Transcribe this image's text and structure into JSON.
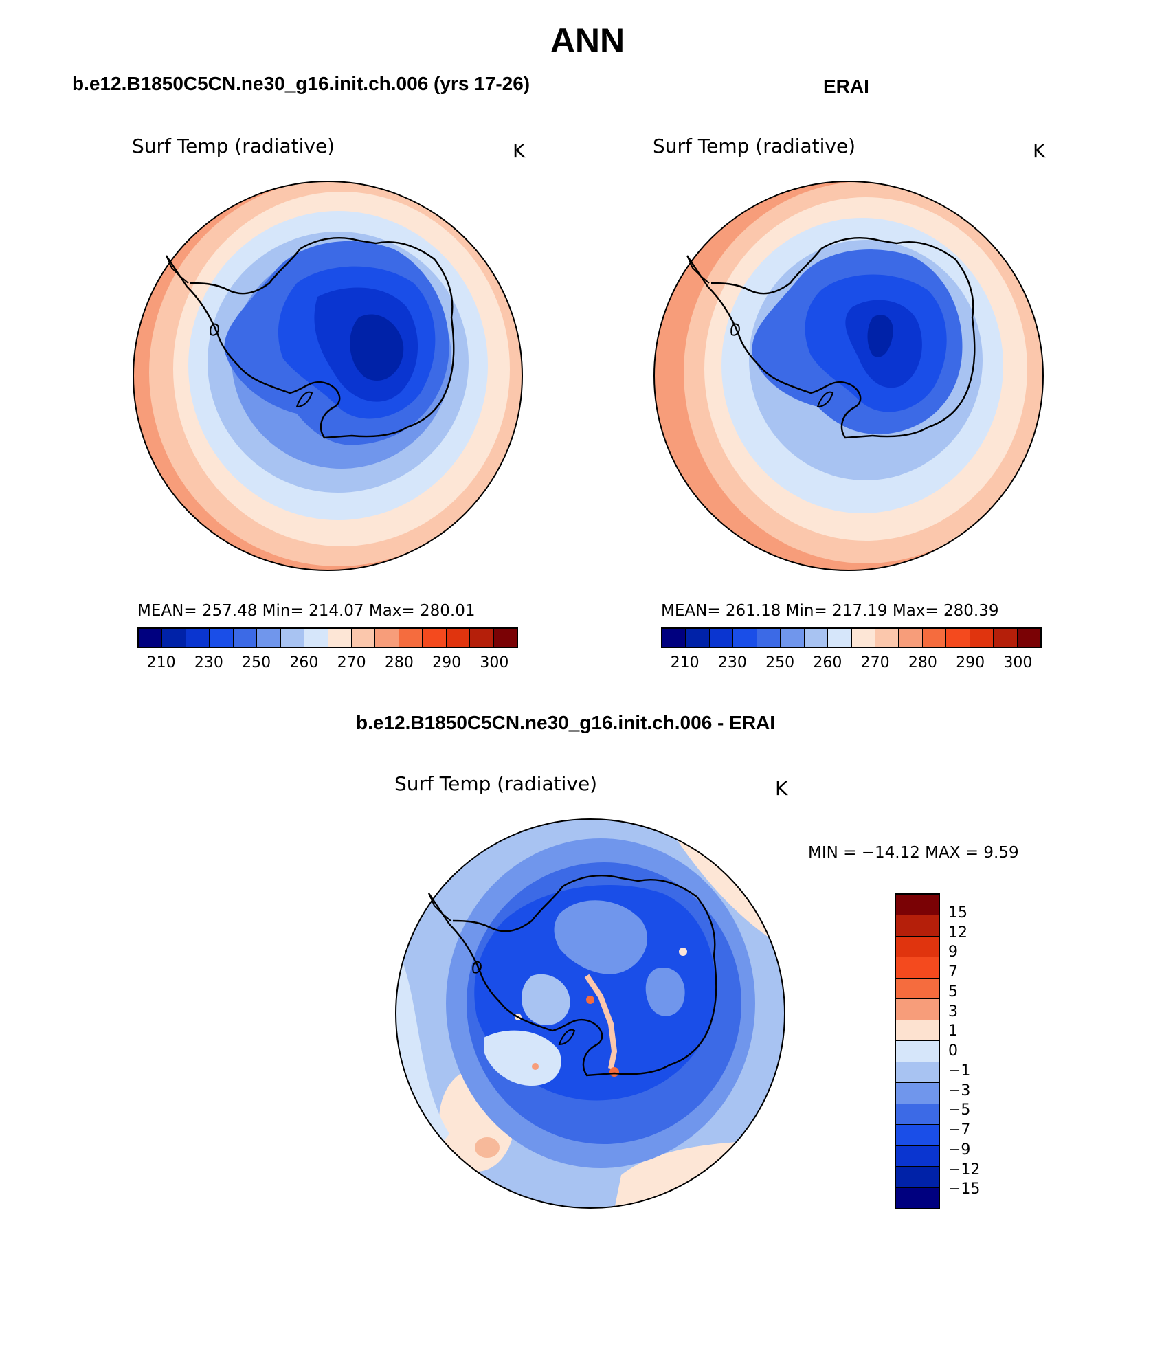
{
  "title": "ANN",
  "panels": [
    {
      "case_title": "b.e12.B1850C5CN.ne30_g16.init.ch.006 (yrs 17-26)",
      "left_label": "Surf Temp (radiative)",
      "right_label": "K",
      "stats": "MEAN= 257.48   Min= 214.07   Max= 280.01",
      "ticks": [
        "210",
        "230",
        "250",
        "260",
        "270",
        "280",
        "290",
        "300"
      ]
    },
    {
      "case_title": "ERAI",
      "left_label": "Surf Temp (radiative)",
      "right_label": "K",
      "stats": "MEAN= 261.18   Min= 217.19   Max= 280.39",
      "ticks": [
        "210",
        "230",
        "250",
        "260",
        "270",
        "280",
        "290",
        "300"
      ]
    },
    {
      "case_title": "b.e12.B1850C5CN.ne30_g16.init.ch.006 - ERAI",
      "left_label": "Surf Temp (radiative)",
      "right_label": "K",
      "stats": "MIN = −14.12 MAX =    9.59",
      "ticks": [
        "15",
        "12",
        "9",
        "7",
        "5",
        "3",
        "1",
        "0",
        "−1",
        "−3",
        "−5",
        "−7",
        "−9",
        "−12",
        "−15"
      ]
    }
  ],
  "colorbar_abs": [
    "#00007f",
    "#0022a8",
    "#0a35d0",
    "#1a4ee8",
    "#3c6ae6",
    "#7096ec",
    "#a8c3f2",
    "#d6e6fa",
    "#fde6d6",
    "#fbc7ac",
    "#f79d7a",
    "#f56c3e",
    "#f44a1e",
    "#e0340e",
    "#b51f0a",
    "#7a0205"
  ],
  "colorbar_diff": [
    "#7a0205",
    "#b51f0a",
    "#e0340e",
    "#f44a1e",
    "#f56c3e",
    "#f79d7a",
    "#fde2d0",
    "#d6e6fa",
    "#a8c3f2",
    "#7096ec",
    "#3c6ae6",
    "#1a4ee8",
    "#0a35d0",
    "#0022a8",
    "#00007f"
  ]
}
